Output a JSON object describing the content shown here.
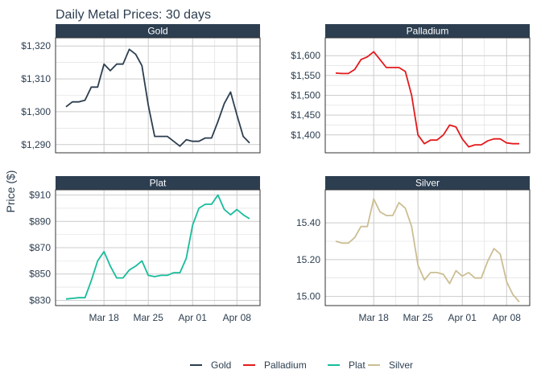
{
  "chart_data": {
    "type": "line",
    "title": "Daily Metal Prices: 30 days",
    "ylabel": "Price ($)",
    "xlabel": "",
    "x_ticks": [
      "Mar 18",
      "Mar 25",
      "Apr 01",
      "Apr 08"
    ],
    "legend_position": "bottom",
    "grid": true,
    "facet_strip_color": "#2c3e50",
    "panels": [
      {
        "name": "Gold",
        "color": "#2c3e50",
        "y_ticks": [
          "$1,290",
          "$1,300",
          "$1,310",
          "$1,320"
        ],
        "y_tick_values": [
          1290,
          1300,
          1310,
          1320
        ],
        "ylim": [
          1287.5,
          1322.5
        ],
        "values": [
          1301.5,
          1303,
          1303,
          1303.5,
          1307.5,
          1307.5,
          1314.5,
          1312.5,
          1314.5,
          1314.5,
          1319,
          1317.5,
          1314,
          1302,
          1292.5,
          1292.5,
          1292.5,
          1291,
          1289.5,
          1291.5,
          1291,
          1291,
          1292,
          1292,
          1297,
          1302.5,
          1306,
          1299,
          1292.5,
          1290.5
        ]
      },
      {
        "name": "Palladium",
        "color": "#e31a1c",
        "y_ticks": [
          "$1,400",
          "$1,450",
          "$1,500",
          "$1,550",
          "$1,600"
        ],
        "y_tick_values": [
          1400,
          1450,
          1500,
          1550,
          1600
        ],
        "ylim": [
          1355,
          1645
        ],
        "values": [
          1556,
          1555,
          1555,
          1565,
          1590,
          1597,
          1610,
          1590,
          1570,
          1570,
          1570,
          1560,
          1500,
          1400,
          1378,
          1387,
          1387,
          1400,
          1425,
          1420,
          1390,
          1370,
          1375,
          1375,
          1385,
          1390,
          1390,
          1380,
          1378,
          1378
        ]
      },
      {
        "name": "Plat",
        "color": "#18bc9c",
        "y_ticks": [
          "$830",
          "$850",
          "$870",
          "$890",
          "$910"
        ],
        "y_tick_values": [
          830,
          850,
          870,
          890,
          910
        ],
        "ylim": [
          826,
          914
        ],
        "values": [
          831,
          831.5,
          832,
          832,
          845,
          860,
          867,
          856,
          847,
          847,
          853,
          856,
          860,
          849,
          848,
          849,
          849,
          851,
          851,
          862,
          887,
          900,
          903,
          903,
          910,
          899,
          895,
          899,
          895,
          892
        ]
      },
      {
        "name": "Silver",
        "color": "#ccbe93",
        "y_ticks": [
          "15.00",
          "15.20",
          "15.40"
        ],
        "y_tick_values": [
          15.0,
          15.2,
          15.4
        ],
        "ylim": [
          14.95,
          15.58
        ],
        "values": [
          15.3,
          15.29,
          15.29,
          15.32,
          15.38,
          15.38,
          15.53,
          15.46,
          15.44,
          15.44,
          15.51,
          15.48,
          15.38,
          15.17,
          15.09,
          15.13,
          15.13,
          15.12,
          15.07,
          15.14,
          15.11,
          15.13,
          15.1,
          15.1,
          15.19,
          15.26,
          15.23,
          15.08,
          15.01,
          14.97
        ]
      }
    ]
  }
}
